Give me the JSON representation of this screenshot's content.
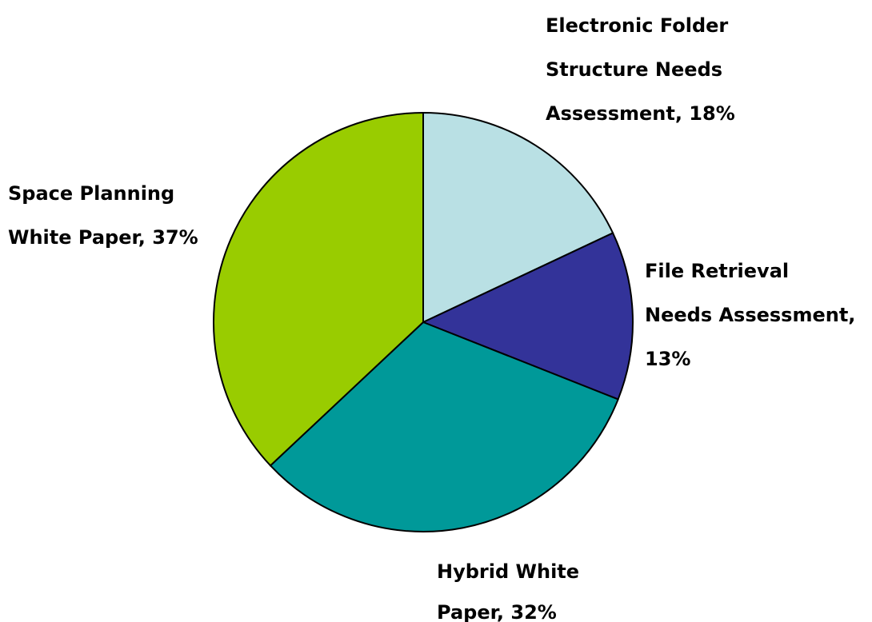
{
  "chart_data": {
    "type": "pie",
    "title": "",
    "slices": [
      {
        "label": "Electronic Folder Structure Needs Assessment, 18%",
        "label_lines": [
          "Electronic Folder",
          "Structure Needs",
          "Assessment, 18%"
        ],
        "value": 18,
        "color": "#b9e0e4"
      },
      {
        "label": "File Retrieval Needs Assessment, 13%",
        "label_lines": [
          "File Retrieval",
          "Needs Assessment,",
          "13%"
        ],
        "value": 13,
        "color": "#333399"
      },
      {
        "label": "Hybrid White Paper, 32%",
        "label_lines": [
          "Hybrid White",
          "Paper, 32%"
        ],
        "value": 32,
        "color": "#009999"
      },
      {
        "label": "Space Planning White Paper, 37%",
        "label_lines": [
          "Space Planning",
          "White Paper, 37%"
        ],
        "value": 37,
        "color": "#99cc00"
      }
    ],
    "start_direction": "top",
    "direction": "clockwise",
    "legend": "none"
  }
}
